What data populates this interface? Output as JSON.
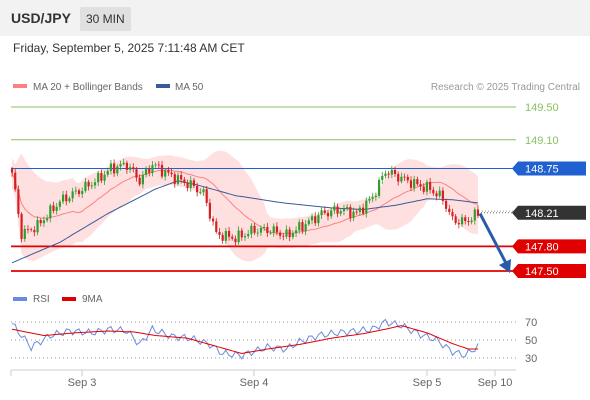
{
  "header": {
    "symbol": "USD/JPY",
    "timeframe": "30 MIN",
    "datetime": "Friday, September 5, 2025 7:11:48 AM CET"
  },
  "legend": {
    "ma20_label": "MA 20 + Bollinger Bands",
    "ma50_label": "MA 50",
    "copyright": "Research © 2025 Trading Central",
    "rsi_label": "RSI",
    "rsi_ma_label": "9MA"
  },
  "colors": {
    "ma20": "#ff8080",
    "ma50": "#3a5a9a",
    "band": "#ffd6d6",
    "up": "#2e9e2e",
    "down": "#d42020",
    "support": "#e00000",
    "pivot": "#2060d0",
    "resistance": "#8ac060",
    "rsi": "#6a8adf",
    "rsi_ma": "#e00000"
  },
  "chart_data": [
    {
      "type": "candlestick",
      "title": "USD/JPY 30 MIN",
      "x_ticks": [
        "Sep 3",
        "Sep 4",
        "Sep 5",
        "Sep 10"
      ],
      "y_range": [
        147.4,
        149.55
      ],
      "levels": [
        {
          "value": 149.5,
          "label": "149.50",
          "kind": "resistance"
        },
        {
          "value": 149.1,
          "label": "149.10",
          "kind": "resistance"
        },
        {
          "value": 148.75,
          "label": "148.75",
          "kind": "pivot"
        },
        {
          "value": 147.8,
          "label": "147.80",
          "kind": "support"
        },
        {
          "value": 147.5,
          "label": "147.50",
          "kind": "support"
        }
      ],
      "last_price": {
        "value": 148.21,
        "label": "148.21"
      },
      "forecast_arrow": {
        "from": 148.2,
        "to": 147.5
      },
      "close_keypoints": [
        [
          0,
          148.7
        ],
        [
          3,
          147.95
        ],
        [
          8,
          148.05
        ],
        [
          15,
          148.35
        ],
        [
          22,
          148.5
        ],
        [
          27,
          148.62
        ],
        [
          31,
          148.75
        ],
        [
          36,
          148.8
        ],
        [
          40,
          148.6
        ],
        [
          44,
          148.8
        ],
        [
          49,
          148.68
        ],
        [
          53,
          148.6
        ],
        [
          56,
          148.55
        ],
        [
          60,
          148.45
        ],
        [
          64,
          147.95
        ],
        [
          70,
          147.9
        ],
        [
          76,
          148.0
        ],
        [
          81,
          148.0
        ],
        [
          86,
          147.93
        ],
        [
          91,
          148.05
        ],
        [
          97,
          148.2
        ],
        [
          103,
          148.25
        ],
        [
          108,
          148.2
        ],
        [
          113,
          148.4
        ],
        [
          117,
          148.72
        ],
        [
          121,
          148.65
        ],
        [
          127,
          148.55
        ],
        [
          131,
          148.5
        ],
        [
          135,
          148.38
        ],
        [
          138,
          148.12
        ],
        [
          142,
          148.1
        ],
        [
          146,
          148.2
        ]
      ],
      "ma50_keypoints": [
        [
          0,
          147.6
        ],
        [
          15,
          147.85
        ],
        [
          30,
          148.2
        ],
        [
          45,
          148.5
        ],
        [
          52,
          148.6
        ],
        [
          58,
          148.55
        ],
        [
          70,
          148.42
        ],
        [
          85,
          148.33
        ],
        [
          100,
          148.27
        ],
        [
          110,
          148.25
        ],
        [
          120,
          148.3
        ],
        [
          130,
          148.38
        ],
        [
          138,
          148.37
        ],
        [
          146,
          148.33
        ]
      ]
    },
    {
      "type": "line",
      "title": "RSI",
      "y_ticks": [
        70,
        50,
        30
      ],
      "y_range": [
        22,
        78
      ],
      "rsi_keypoints": [
        [
          0,
          68
        ],
        [
          6,
          42
        ],
        [
          12,
          55
        ],
        [
          18,
          60
        ],
        [
          25,
          58
        ],
        [
          31,
          62
        ],
        [
          36,
          60
        ],
        [
          40,
          45
        ],
        [
          44,
          62
        ],
        [
          50,
          54
        ],
        [
          56,
          52
        ],
        [
          62,
          45
        ],
        [
          66,
          35
        ],
        [
          72,
          33
        ],
        [
          80,
          42
        ],
        [
          86,
          40
        ],
        [
          90,
          48
        ],
        [
          96,
          55
        ],
        [
          102,
          58
        ],
        [
          108,
          60
        ],
        [
          113,
          62
        ],
        [
          117,
          70
        ],
        [
          122,
          66
        ],
        [
          128,
          56
        ],
        [
          133,
          50
        ],
        [
          138,
          37
        ],
        [
          142,
          33
        ],
        [
          146,
          43
        ]
      ],
      "rsi_ma_keypoints": [
        [
          0,
          62
        ],
        [
          10,
          55
        ],
        [
          20,
          58
        ],
        [
          30,
          60
        ],
        [
          38,
          59
        ],
        [
          45,
          55
        ],
        [
          55,
          52
        ],
        [
          65,
          42
        ],
        [
          72,
          35
        ],
        [
          80,
          40
        ],
        [
          90,
          45
        ],
        [
          100,
          52
        ],
        [
          110,
          57
        ],
        [
          117,
          62
        ],
        [
          122,
          66
        ],
        [
          130,
          58
        ],
        [
          138,
          46
        ],
        [
          143,
          40
        ],
        [
          146,
          40
        ]
      ]
    }
  ]
}
